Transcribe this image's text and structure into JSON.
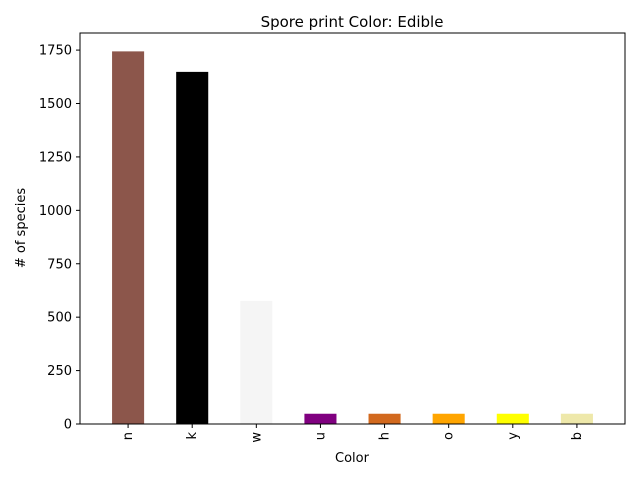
{
  "chart_data": {
    "type": "bar",
    "title": "Spore print Color: Edible",
    "xlabel": "Color",
    "ylabel": "# of species",
    "categories": [
      "n",
      "k",
      "w",
      "u",
      "h",
      "o",
      "y",
      "b"
    ],
    "values": [
      1744,
      1648,
      576,
      48,
      48,
      48,
      48,
      48
    ],
    "colors": [
      "#8c564b",
      "#000000",
      "#f5f5f5",
      "#800080",
      "#d2691e",
      "#ffa500",
      "#ffff00",
      "#eee8aa"
    ],
    "ylim": [
      0,
      1830
    ],
    "yticks": [
      0,
      250,
      500,
      750,
      1000,
      1250,
      1500,
      1750
    ],
    "ytick_labels": [
      "0",
      "250",
      "500",
      "750",
      "1000",
      "1250",
      "1500",
      "1750"
    ],
    "grid": false,
    "legend": "none"
  }
}
